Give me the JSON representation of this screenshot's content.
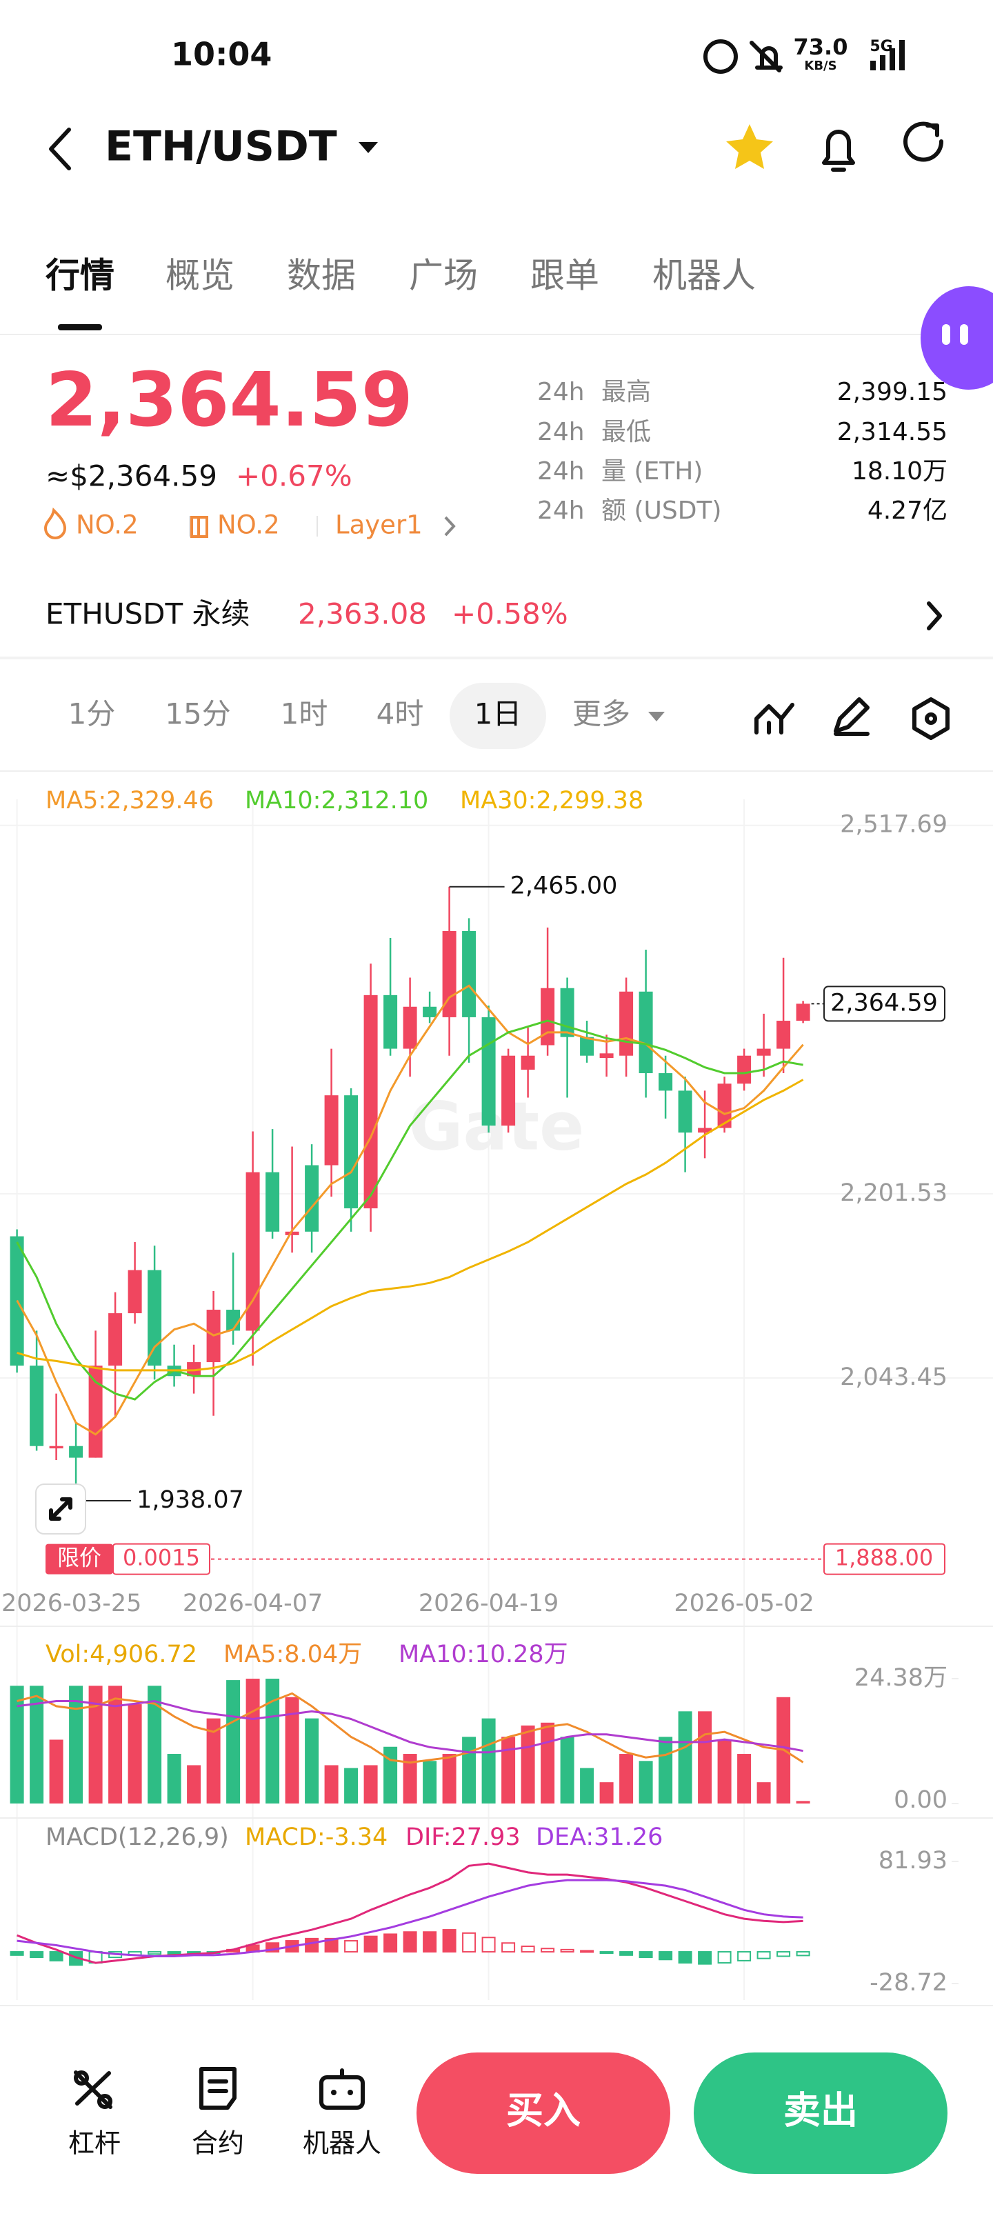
{
  "status_bar": {
    "time": "10:04",
    "speed": "73.0",
    "speed_unit": "KB/S",
    "network": "5G"
  },
  "header": {
    "pair": "ETH/USDT"
  },
  "tabs": [
    "行情",
    "概览",
    "数据",
    "广场",
    "跟单",
    "机器人"
  ],
  "active_tab": 0,
  "ticker": {
    "price": "2,364.59",
    "usd_price": "≈$2,364.59",
    "change": "+0.67%",
    "tags": [
      "NO.2",
      "NO.2",
      "Layer1"
    ],
    "stats": [
      {
        "period": "24h",
        "label": "最高",
        "value": "2,399.15"
      },
      {
        "period": "24h",
        "label": "最低",
        "value": "2,314.55"
      },
      {
        "period": "24h",
        "label": "量 (ETH)",
        "value": "18.10万"
      },
      {
        "period": "24h",
        "label": "额 (USDT)",
        "value": "4.27亿"
      }
    ]
  },
  "perpetual": {
    "name": "ETHUSDT 永续",
    "price": "2,363.08",
    "change": "+0.58%"
  },
  "intervals": [
    "1分",
    "15分",
    "1时",
    "4时",
    "1日",
    "更多"
  ],
  "active_interval": 4,
  "chart_data": [
    {
      "type": "candlestick",
      "up_color": "#f0465f",
      "down_color": "#2ebd85",
      "watermark": "Gate",
      "categories": [
        "2026-03-25",
        null,
        null,
        null,
        null,
        null,
        null,
        null,
        null,
        null,
        null,
        null,
        "2026-04-07",
        null,
        null,
        null,
        null,
        null,
        null,
        null,
        null,
        null,
        null,
        null,
        "2026-04-19",
        null,
        null,
        null,
        null,
        null,
        null,
        null,
        null,
        null,
        null,
        null,
        null,
        "2026-05-02",
        null,
        null,
        null
      ],
      "open": [
        2165,
        2054,
        1983,
        1985,
        1975,
        2054,
        2099,
        2136,
        2054,
        2045,
        2057,
        2102,
        2084,
        2220,
        2166,
        2226,
        2226,
        2286,
        2189,
        2372,
        2326,
        2362,
        2353,
        2427,
        2353,
        2260,
        2308,
        2329,
        2378,
        2336,
        2318,
        2320,
        2375,
        2305,
        2290,
        2254,
        2258,
        2296,
        2320,
        2326,
        2350
      ],
      "high": [
        2171,
        2084,
        2030,
        2005,
        2084,
        2117,
        2160,
        2157,
        2072,
        2072,
        2118,
        2151,
        2255,
        2257,
        2242,
        2244,
        2326,
        2292,
        2399,
        2421,
        2387,
        2375,
        2465,
        2438,
        2363,
        2326,
        2344,
        2430,
        2387,
        2350,
        2338,
        2387,
        2411,
        2320,
        2302,
        2290,
        2302,
        2326,
        2356,
        2404,
        2367
      ],
      "low": [
        2048,
        1981,
        1973,
        1938.07,
        1975,
        2011,
        2090,
        2042,
        2036,
        2030,
        2011,
        2072,
        2054,
        2163,
        2151,
        2151,
        2199,
        2169,
        2169,
        2320,
        2302,
        2348,
        2320,
        2314,
        2254,
        2254,
        2284,
        2320,
        2284,
        2314,
        2302,
        2302,
        2284,
        2266,
        2220,
        2232,
        2254,
        2290,
        2302,
        2305,
        2348
      ],
      "close": [
        2054,
        1985,
        1985,
        1975,
        2054,
        2099,
        2136,
        2054,
        2045,
        2057,
        2102,
        2084,
        2220,
        2169,
        2169,
        2169,
        2286,
        2189,
        2372,
        2326,
        2362,
        2353,
        2427,
        2353,
        2260,
        2320,
        2320,
        2378,
        2336,
        2320,
        2322,
        2375,
        2305,
        2290,
        2254,
        2258,
        2296,
        2320,
        2326,
        2350,
        2364.59
      ],
      "series": [
        {
          "name": "MA5:2,329.46",
          "color": "#f39a2b",
          "values": [
            2110,
            2080,
            2040,
            2005,
            1995,
            2010,
            2040,
            2070,
            2085,
            2090,
            2080,
            2085,
            2110,
            2140,
            2170,
            2190,
            2210,
            2220,
            2250,
            2290,
            2320,
            2345,
            2370,
            2380,
            2360,
            2340,
            2330,
            2340,
            2340,
            2335,
            2332,
            2335,
            2330,
            2315,
            2300,
            2280,
            2270,
            2275,
            2290,
            2310,
            2329.46
          ]
        },
        {
          "name": "MA10:2,312.10",
          "color": "#52cc2e",
          "values": [
            2160,
            2130,
            2090,
            2060,
            2040,
            2030,
            2025,
            2040,
            2050,
            2045,
            2045,
            2060,
            2080,
            2100,
            2120,
            2140,
            2160,
            2180,
            2200,
            2230,
            2260,
            2280,
            2300,
            2320,
            2330,
            2340,
            2345,
            2350,
            2345,
            2340,
            2335,
            2332,
            2330,
            2325,
            2318,
            2310,
            2305,
            2305,
            2308,
            2315,
            2312.1
          ]
        },
        {
          "name": "MA30:2,299.38",
          "color": "#f0b400",
          "values": [
            2065,
            2060,
            2058,
            2055,
            2052,
            2050,
            2050,
            2050,
            2050,
            2050,
            2052,
            2056,
            2064,
            2075,
            2085,
            2095,
            2105,
            2112,
            2118,
            2120,
            2122,
            2125,
            2130,
            2138,
            2145,
            2152,
            2160,
            2170,
            2180,
            2190,
            2200,
            2210,
            2218,
            2228,
            2240,
            2252,
            2262,
            2272,
            2282,
            2290,
            2299.38
          ]
        }
      ],
      "ylim": [
        1870,
        2540
      ],
      "yticks": [
        {
          "value": 2517.69,
          "label": "2,517.69"
        },
        {
          "value": 2201.53,
          "label": "2,201.53"
        },
        {
          "value": 2043.45,
          "label": "2,043.45"
        }
      ],
      "grid": true,
      "last_price": {
        "value": 2364.59,
        "label": "2,364.59"
      },
      "high_mark": {
        "value": 2465,
        "label": "2,465.00"
      },
      "low_mark": {
        "value": 1938.07,
        "label": "1,938.07"
      },
      "limit": {
        "name": "限价",
        "amount": "0.0015",
        "price": {
          "value": 1888,
          "label": "1,888.00"
        }
      }
    },
    {
      "type": "volume",
      "series": [
        {
          "name": "Vol:4,906.72",
          "color": "#e8a800",
          "values": [
            229910,
            229910,
            124650,
            229910,
            229910,
            229910,
            193900,
            229910,
            96950,
            74790,
            166200,
            240990,
            243760,
            243760,
            207750,
            166200,
            74790,
            69250,
            74790,
            110800,
            96950,
            83100,
            96950,
            130190,
            166200,
            130190,
            152350,
            157890,
            130190,
            69250,
            41550,
            96950,
            83100,
            130190,
            180050,
            180050,
            124650,
            96950,
            41550,
            207750,
            4906.72
          ]
        },
        {
          "name": "MA5:8.04万",
          "color": "#f08c2c",
          "values": [
            200000,
            210000,
            190000,
            185000,
            190000,
            205000,
            200000,
            195000,
            170000,
            150000,
            140000,
            160000,
            180000,
            200000,
            215000,
            190000,
            160000,
            130000,
            110000,
            85000,
            80000,
            85000,
            90000,
            100000,
            115000,
            130000,
            140000,
            150000,
            155000,
            140000,
            120000,
            100000,
            90000,
            95000,
            110000,
            135000,
            140000,
            125000,
            110000,
            105000,
            80400
          ]
        },
        {
          "name": "MA10:10.28万",
          "color": "#b03ccf",
          "values": [
            190000,
            195000,
            200000,
            200000,
            195000,
            190000,
            195000,
            200000,
            190000,
            180000,
            175000,
            170000,
            165000,
            170000,
            175000,
            180000,
            175000,
            165000,
            150000,
            135000,
            120000,
            110000,
            105000,
            100000,
            100000,
            105000,
            110000,
            120000,
            130000,
            135000,
            135000,
            130000,
            125000,
            120000,
            120000,
            120000,
            125000,
            120000,
            115000,
            110000,
            102800
          ]
        }
      ],
      "ylim": [
        0,
        243800
      ],
      "yticks": [
        {
          "value": 243800,
          "label": "24.38万"
        },
        {
          "value": 0,
          "label": "0.00"
        }
      ]
    },
    {
      "type": "macd",
      "title": "MACD(12,26,9)",
      "series": [
        {
          "name": "MACD:-3.34",
          "color": "#e8a800",
          "values": [
            -3,
            -5,
            -8,
            -12,
            -10,
            -5,
            -3,
            -2,
            -2,
            -1,
            -1,
            2,
            6,
            8,
            10,
            12,
            12,
            10,
            14,
            16,
            18,
            18,
            20,
            17,
            13,
            8,
            5,
            3,
            2,
            1,
            -1,
            -3,
            -5,
            -7,
            -10,
            -11,
            -10,
            -8,
            -6,
            -4,
            -3.34
          ]
        },
        {
          "name": "DIF:27.93",
          "color": "#e0287a",
          "values": [
            15,
            8,
            2,
            -5,
            -10,
            -8,
            -6,
            -4,
            -3,
            -2,
            -1,
            2,
            7,
            12,
            16,
            20,
            25,
            30,
            38,
            45,
            52,
            58,
            66,
            78,
            80,
            76,
            72,
            70,
            70,
            68,
            66,
            63,
            58,
            52,
            46,
            40,
            34,
            30,
            28,
            27,
            27.93
          ]
        },
        {
          "name": "DEA:31.26",
          "color": "#a43ce0",
          "values": [
            10,
            8,
            6,
            3,
            0,
            -2,
            -3,
            -4,
            -4,
            -3,
            -3,
            -2,
            0,
            2,
            5,
            8,
            11,
            14,
            18,
            22,
            27,
            32,
            38,
            44,
            50,
            55,
            60,
            63,
            65,
            65,
            65,
            64,
            62,
            60,
            56,
            50,
            44,
            38,
            34,
            32,
            31.26
          ]
        }
      ],
      "ylim": [
        -28.72,
        81.93
      ],
      "yticks": [
        81.93,
        -28.72
      ]
    }
  ],
  "actions": {
    "tools": [
      "杠杆",
      "合约",
      "机器人"
    ],
    "buy": "买入",
    "sell": "卖出"
  }
}
